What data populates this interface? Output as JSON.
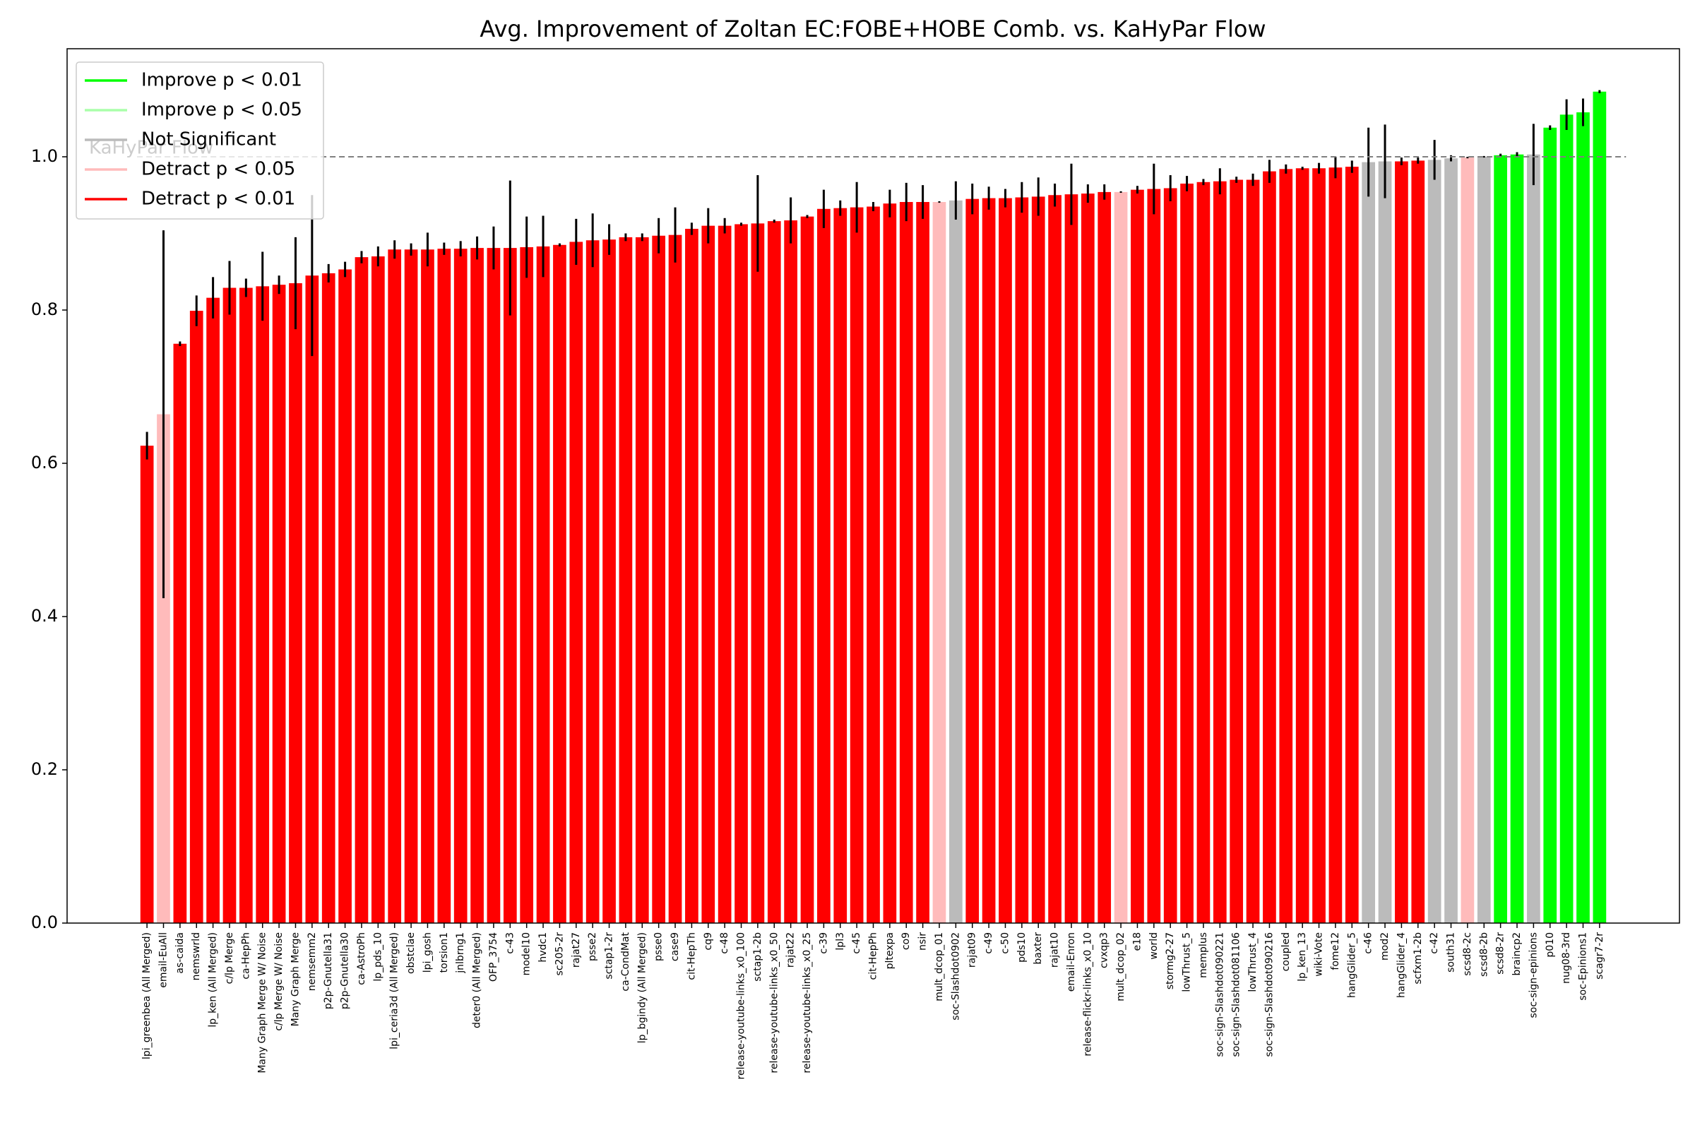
{
  "chart_data": {
    "type": "bar",
    "title": "Avg. Improvement of Zoltan EC:FOBE+HOBE Comb. vs. KaHyPar Flow",
    "categories": [
      "lpi_greenbea (All Merged)",
      "email-EuAll",
      "as-caida",
      "nemswrld",
      "lp_ken (All Merged)",
      "c/lp Merge",
      "ca-HepPh",
      "Many Graph Merge W/ Noise",
      "c/lp Merge W/ Noise",
      "Many Graph Merge",
      "nemsemm2",
      "p2p-Gnutella31",
      "p2p-Gnutella30",
      "ca-AstroPh",
      "lp_pds_10",
      "lpi_ceria3d (All Merged)",
      "obstclae",
      "lpi_gosh",
      "torsion1",
      "jnlbrng1",
      "deter0 (All Merged)",
      "OFP_3754",
      "c-43",
      "model10",
      "hvdc1",
      "sc205-2r",
      "rajat27",
      "psse2",
      "sctap1-2r",
      "ca-CondMat",
      "lp_bgindy (All Merged)",
      "psse0",
      "case9",
      "cit-HepTh",
      "cq9",
      "c-48",
      "release-youtube-links_x0_100",
      "sctap1-2b",
      "release-youtube-links_x0_50",
      "rajat22",
      "release-youtube-links_x0_25",
      "c-39",
      "lpl3",
      "c-45",
      "cit-HepPh",
      "pltexpa",
      "co9",
      "nsir",
      "mult_dcop_01",
      "soc-Slashdot0902",
      "rajat09",
      "c-49",
      "c-50",
      "pds10",
      "baxter",
      "rajat10",
      "email-Enron",
      "release-flickr-links_x0_10",
      "cvxqp3",
      "mult_dcop_02",
      "e18",
      "world",
      "stormg2-27",
      "lowThrust_5",
      "memplus",
      "soc-sign-Slashdot090221",
      "soc-sign-Slashdot081106",
      "lowThrust_4",
      "soc-sign-Slashdot090216",
      "coupled",
      "lp_ken_13",
      "wiki-Vote",
      "fome12",
      "hangGlider_5",
      "c-46",
      "mod2",
      "hangGlider_4",
      "scfxm1-2b",
      "c-42",
      "south31",
      "scsd8-2c",
      "scsd8-2b",
      "scsd8-2r",
      "braincp2",
      "soc-sign-epinions",
      "p010",
      "nug08-3rd",
      "soc-Epinions1",
      "scagr7-2r"
    ],
    "values": [
      0.623,
      0.664,
      0.756,
      0.799,
      0.816,
      0.829,
      0.829,
      0.831,
      0.833,
      0.835,
      0.845,
      0.848,
      0.853,
      0.869,
      0.87,
      0.879,
      0.879,
      0.879,
      0.88,
      0.88,
      0.881,
      0.881,
      0.881,
      0.882,
      0.883,
      0.885,
      0.889,
      0.891,
      0.892,
      0.895,
      0.895,
      0.897,
      0.898,
      0.906,
      0.91,
      0.91,
      0.912,
      0.913,
      0.916,
      0.917,
      0.922,
      0.932,
      0.933,
      0.934,
      0.935,
      0.939,
      0.941,
      0.941,
      0.941,
      0.943,
      0.945,
      0.946,
      0.946,
      0.947,
      0.948,
      0.95,
      0.951,
      0.952,
      0.954,
      0.954,
      0.957,
      0.958,
      0.959,
      0.965,
      0.967,
      0.968,
      0.97,
      0.97,
      0.981,
      0.984,
      0.985,
      0.985,
      0.986,
      0.987,
      0.993,
      0.994,
      0.994,
      0.995,
      0.996,
      0.998,
      0.999,
      1.0,
      1.002,
      1.003,
      1.003,
      1.038,
      1.055,
      1.058,
      1.085
    ],
    "errors": [
      0.018,
      0.24,
      0.003,
      0.02,
      0.027,
      0.035,
      0.012,
      0.045,
      0.012,
      0.06,
      0.105,
      0.012,
      0.01,
      0.008,
      0.013,
      0.012,
      0.008,
      0.022,
      0.008,
      0.01,
      0.015,
      0.028,
      0.088,
      0.04,
      0.04,
      0.002,
      0.03,
      0.035,
      0.02,
      0.005,
      0.005,
      0.023,
      0.036,
      0.008,
      0.023,
      0.01,
      0.002,
      0.063,
      0.002,
      0.03,
      0.002,
      0.025,
      0.01,
      0.033,
      0.006,
      0.018,
      0.025,
      0.022,
      0.001,
      0.025,
      0.02,
      0.015,
      0.012,
      0.02,
      0.025,
      0.015,
      0.04,
      0.012,
      0.01,
      0.001,
      0.005,
      0.033,
      0.017,
      0.01,
      0.004,
      0.017,
      0.004,
      0.008,
      0.015,
      0.006,
      0.002,
      0.007,
      0.014,
      0.008,
      0.045,
      0.048,
      0.005,
      0.004,
      0.026,
      0.004,
      0.001,
      0.001,
      0.002,
      0.003,
      0.04,
      0.003,
      0.02,
      0.018,
      0.002
    ],
    "colors": [
      "#ff0000",
      "#ffbbbb",
      "#ff0000",
      "#ff0000",
      "#ff0000",
      "#ff0000",
      "#ff0000",
      "#ff0000",
      "#ff0000",
      "#ff0000",
      "#ff0000",
      "#ff0000",
      "#ff0000",
      "#ff0000",
      "#ff0000",
      "#ff0000",
      "#ff0000",
      "#ff0000",
      "#ff0000",
      "#ff0000",
      "#ff0000",
      "#ff0000",
      "#ff0000",
      "#ff0000",
      "#ff0000",
      "#ff0000",
      "#ff0000",
      "#ff0000",
      "#ff0000",
      "#ff0000",
      "#ff0000",
      "#ff0000",
      "#ff0000",
      "#ff0000",
      "#ff0000",
      "#ff0000",
      "#ff0000",
      "#ff0000",
      "#ff0000",
      "#ff0000",
      "#ff0000",
      "#ff0000",
      "#ff0000",
      "#ff0000",
      "#ff0000",
      "#ff0000",
      "#ff0000",
      "#ff0000",
      "#ffbbbb",
      "#bbbbbb",
      "#ff0000",
      "#ff0000",
      "#ff0000",
      "#ff0000",
      "#ff0000",
      "#ff0000",
      "#ff0000",
      "#ff0000",
      "#ff0000",
      "#ffbbbb",
      "#ff0000",
      "#ff0000",
      "#ff0000",
      "#ff0000",
      "#ff0000",
      "#ff0000",
      "#ff0000",
      "#ff0000",
      "#ff0000",
      "#ff0000",
      "#ff0000",
      "#ff0000",
      "#ff0000",
      "#ff0000",
      "#bbbbbb",
      "#bbbbbb",
      "#ff0000",
      "#ff0000",
      "#bbbbbb",
      "#bbbbbb",
      "#ffbbbb",
      "#bbbbbb",
      "#00ff00",
      "#00ff00",
      "#bbbbbb",
      "#00ff00",
      "#00ff00",
      "#00ff00",
      "#00ff00"
    ],
    "legend": [
      {
        "name": "Improve p < 0.01",
        "color": "#00ff00"
      },
      {
        "name": "Improve p < 0.05",
        "color": "#aaffaa"
      },
      {
        "name": "Not Significant",
        "color": "#bbbbbb"
      },
      {
        "name": "Detract p < 0.05",
        "color": "#ffbbbb"
      },
      {
        "name": "Detract p < 0.01",
        "color": "#ff0000"
      }
    ],
    "legend_position": "upper left",
    "reference_line": {
      "value": 1.0,
      "label": "KaHyPar Flow",
      "color": "#808080"
    },
    "ylim": [
      0,
      1.141
    ],
    "yticks": [
      {
        "value": 0,
        "label": "0.0"
      },
      0.2,
      0.4,
      0.6,
      0.8,
      {
        "value": 1,
        "label": "1.0"
      }
    ]
  }
}
